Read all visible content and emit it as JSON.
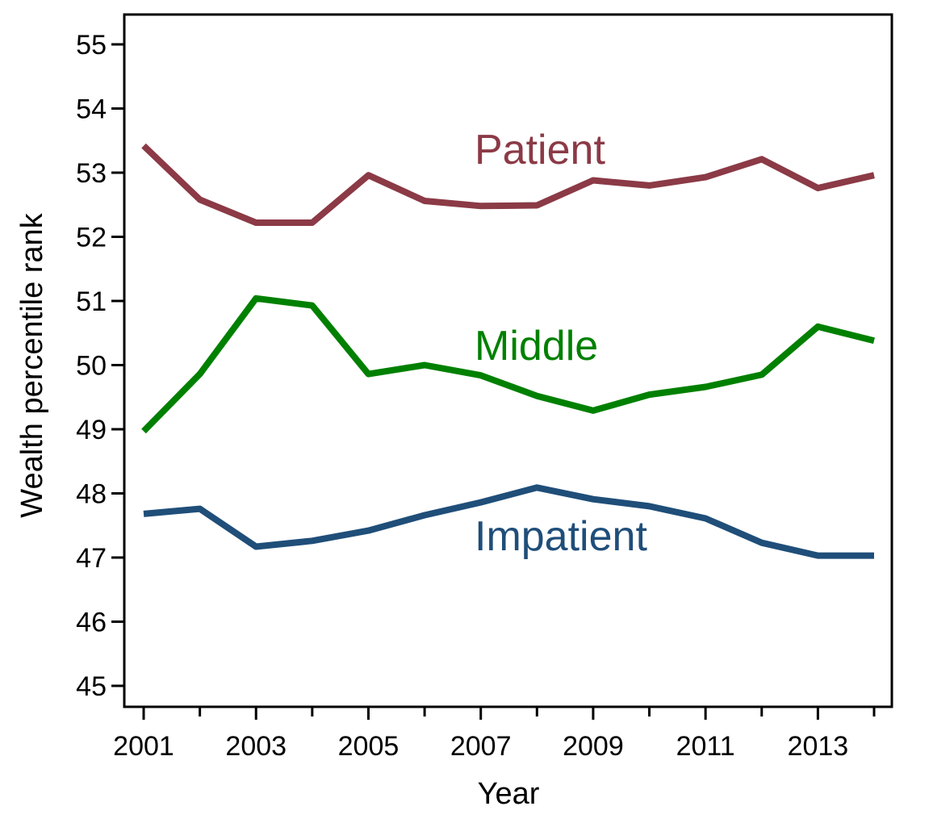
{
  "chart_data": {
    "type": "line",
    "title": "",
    "xlabel": "Year",
    "ylabel": "Wealth percentile rank",
    "x": [
      2001,
      2002,
      2003,
      2004,
      2005,
      2006,
      2007,
      2008,
      2009,
      2010,
      2011,
      2012,
      2013,
      2014
    ],
    "xlim": [
      2001,
      2014
    ],
    "ylim": [
      45,
      55
    ],
    "x_tick_labels": [
      "2001",
      "2003",
      "2005",
      "2007",
      "2009",
      "2011",
      "2013"
    ],
    "x_minor_ticks": [
      2002,
      2004,
      2006,
      2008,
      2010,
      2012,
      2014
    ],
    "y_ticks": [
      45,
      46,
      47,
      48,
      49,
      50,
      51,
      52,
      53,
      54,
      55
    ],
    "grid": false,
    "legend": "none",
    "series": [
      {
        "name": "Patient",
        "color": "#8b3a46",
        "values": [
          53.42,
          52.58,
          52.22,
          52.22,
          52.96,
          52.56,
          52.48,
          52.49,
          52.88,
          52.8,
          52.93,
          53.21,
          52.76,
          52.96
        ]
      },
      {
        "name": "Middle",
        "color": "#008000",
        "values": [
          48.97,
          49.86,
          51.04,
          50.93,
          49.86,
          50.0,
          49.84,
          49.52,
          49.29,
          49.54,
          49.66,
          49.85,
          50.6,
          50.38
        ]
      },
      {
        "name": "Impatient",
        "color": "#1f4e79",
        "values": [
          47.68,
          47.76,
          47.17,
          47.26,
          47.42,
          47.66,
          47.86,
          48.09,
          47.91,
          47.8,
          47.61,
          47.23,
          47.03,
          47.03
        ]
      }
    ]
  }
}
